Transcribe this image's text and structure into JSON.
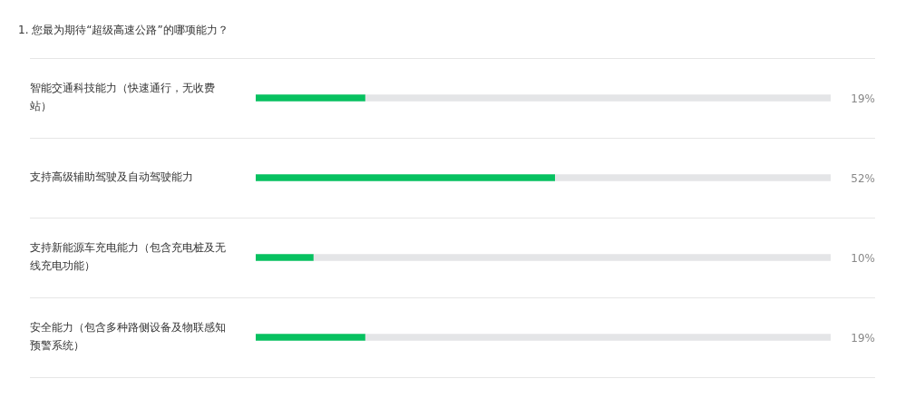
{
  "chart_data": {
    "type": "bar",
    "orientation": "horizontal",
    "stacked": true,
    "title": "1. 您最为期待“超级高速公路”的哪项能力？",
    "categories": [
      "智能交通科技能力（快速通行，无收费站）",
      "支持高级辅助驾驶及自动驾驶能力",
      "支持新能源车充电能力（包含充电桩及无线充电功能）",
      "安全能力（包含多种路侧设备及物联感知预警系统）"
    ],
    "series": [
      {
        "color": "#07c160",
        "values": [
          19,
          52,
          10,
          19
        ],
        "value_labels": [
          "19%",
          "52%",
          "10%",
          "19%"
        ]
      },
      {
        "color": "#e4e5e7",
        "values": [
          81,
          48,
          90,
          81
        ]
      }
    ],
    "xlim": [
      0,
      100
    ],
    "tick_labels": "y",
    "grid": "y",
    "legend": false
  }
}
